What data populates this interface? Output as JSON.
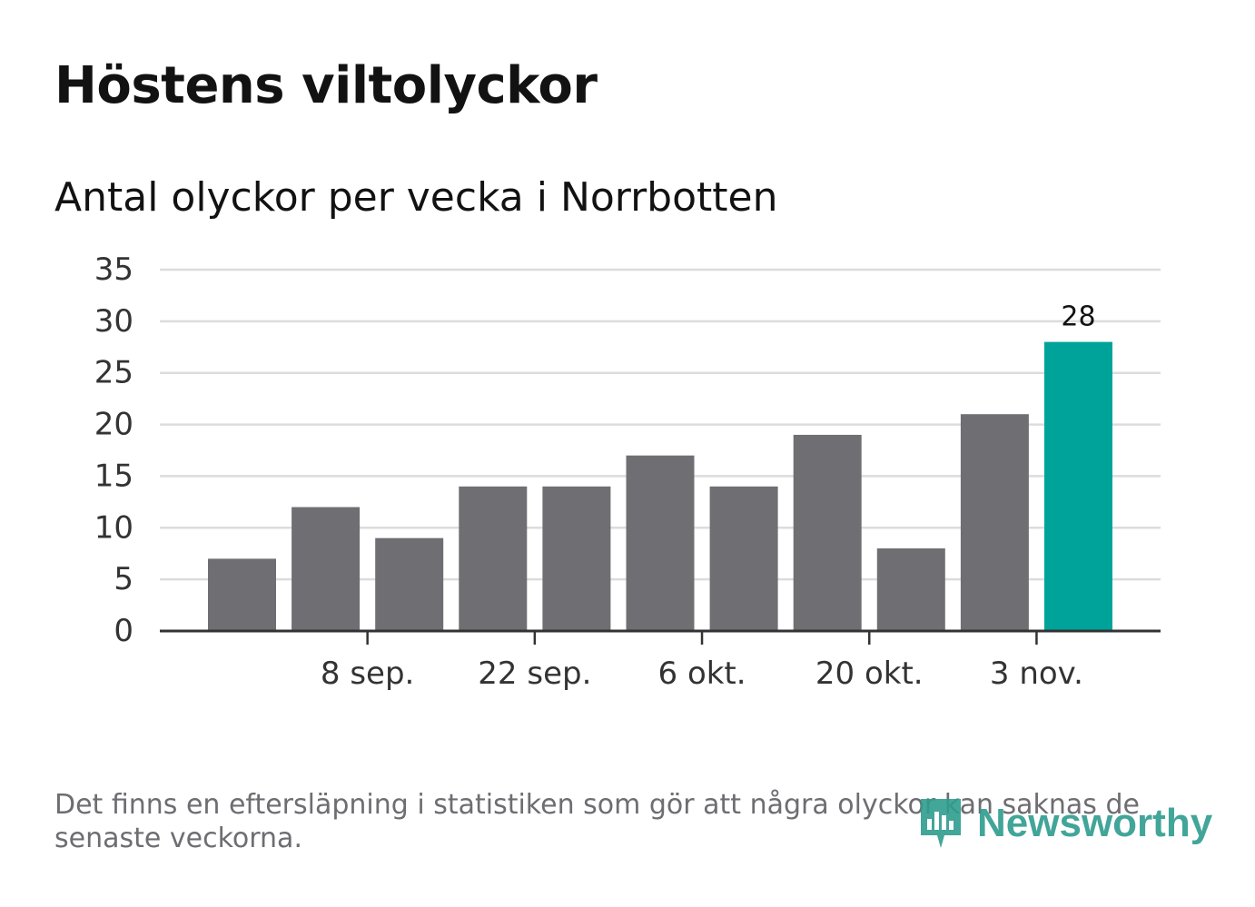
{
  "header": {
    "title": "Höstens viltolyckor",
    "subtitle": "Antal olyckor per vecka i Norrbotten"
  },
  "footer": {
    "note": "Det finns en eftersläpning i statistiken som gör att några olyckor kan saknas de senaste veckorna.",
    "brand": "Newsworthy"
  },
  "colors": {
    "bar": "#6f6e73",
    "highlight": "#00a39a",
    "grid": "#dcdcdc",
    "axis": "#333333",
    "text": "#333333",
    "brand": "#2e9c8e"
  },
  "chart_data": {
    "type": "bar",
    "title": "Höstens viltolyckor",
    "subtitle": "Antal olyckor per vecka i Norrbotten",
    "xlabel": "",
    "ylabel": "",
    "ylim": [
      0,
      35
    ],
    "yticks": [
      0,
      5,
      10,
      15,
      20,
      25,
      30,
      35
    ],
    "grid": true,
    "values": [
      7,
      12,
      9,
      14,
      14,
      17,
      14,
      19,
      8,
      21,
      28
    ],
    "highlight_index": 10,
    "highlight_label": "28",
    "xtick_labels": [
      {
        "label": "8 sep.",
        "between": [
          1,
          2
        ]
      },
      {
        "label": "22 sep.",
        "between": [
          3,
          4
        ]
      },
      {
        "label": "6 okt.",
        "between": [
          5,
          6
        ]
      },
      {
        "label": "20 okt.",
        "between": [
          7,
          8
        ]
      },
      {
        "label": "3 nov.",
        "between": [
          9,
          10
        ]
      }
    ]
  }
}
